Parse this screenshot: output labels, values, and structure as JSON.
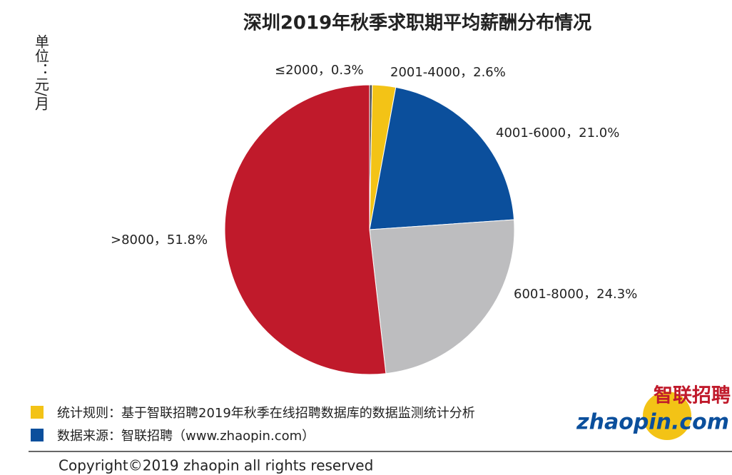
{
  "chart_data": {
    "type": "pie",
    "title": "深圳2019年秋季求职期平均薪酬分布情况",
    "unit_label": "单位：元/月",
    "categories": [
      "≤2000",
      "2001-4000",
      "4001-6000",
      "6001-8000",
      ">8000"
    ],
    "values": [
      0.3,
      2.6,
      21.0,
      24.3,
      51.8
    ],
    "value_labels": [
      "0.3%",
      "2.6%",
      "21.0%",
      "24.3%",
      "51.8%"
    ],
    "separator": "，",
    "colors": [
      "#4a4a4a",
      "#f3c316",
      "#0b4f9c",
      "#bdbdbf",
      "#c01a2b"
    ],
    "notes": [
      "统计规则：基于智联招聘2019年秋季在线招聘数据库的数据监测统计分析",
      "数据来源：智联招聘（www.zhaopin.com）"
    ],
    "copyright": "Copyright©2019 zhaopin all rights reserved",
    "logo": {
      "cn": "智联招聘",
      "en": "zhaopin.com"
    }
  }
}
